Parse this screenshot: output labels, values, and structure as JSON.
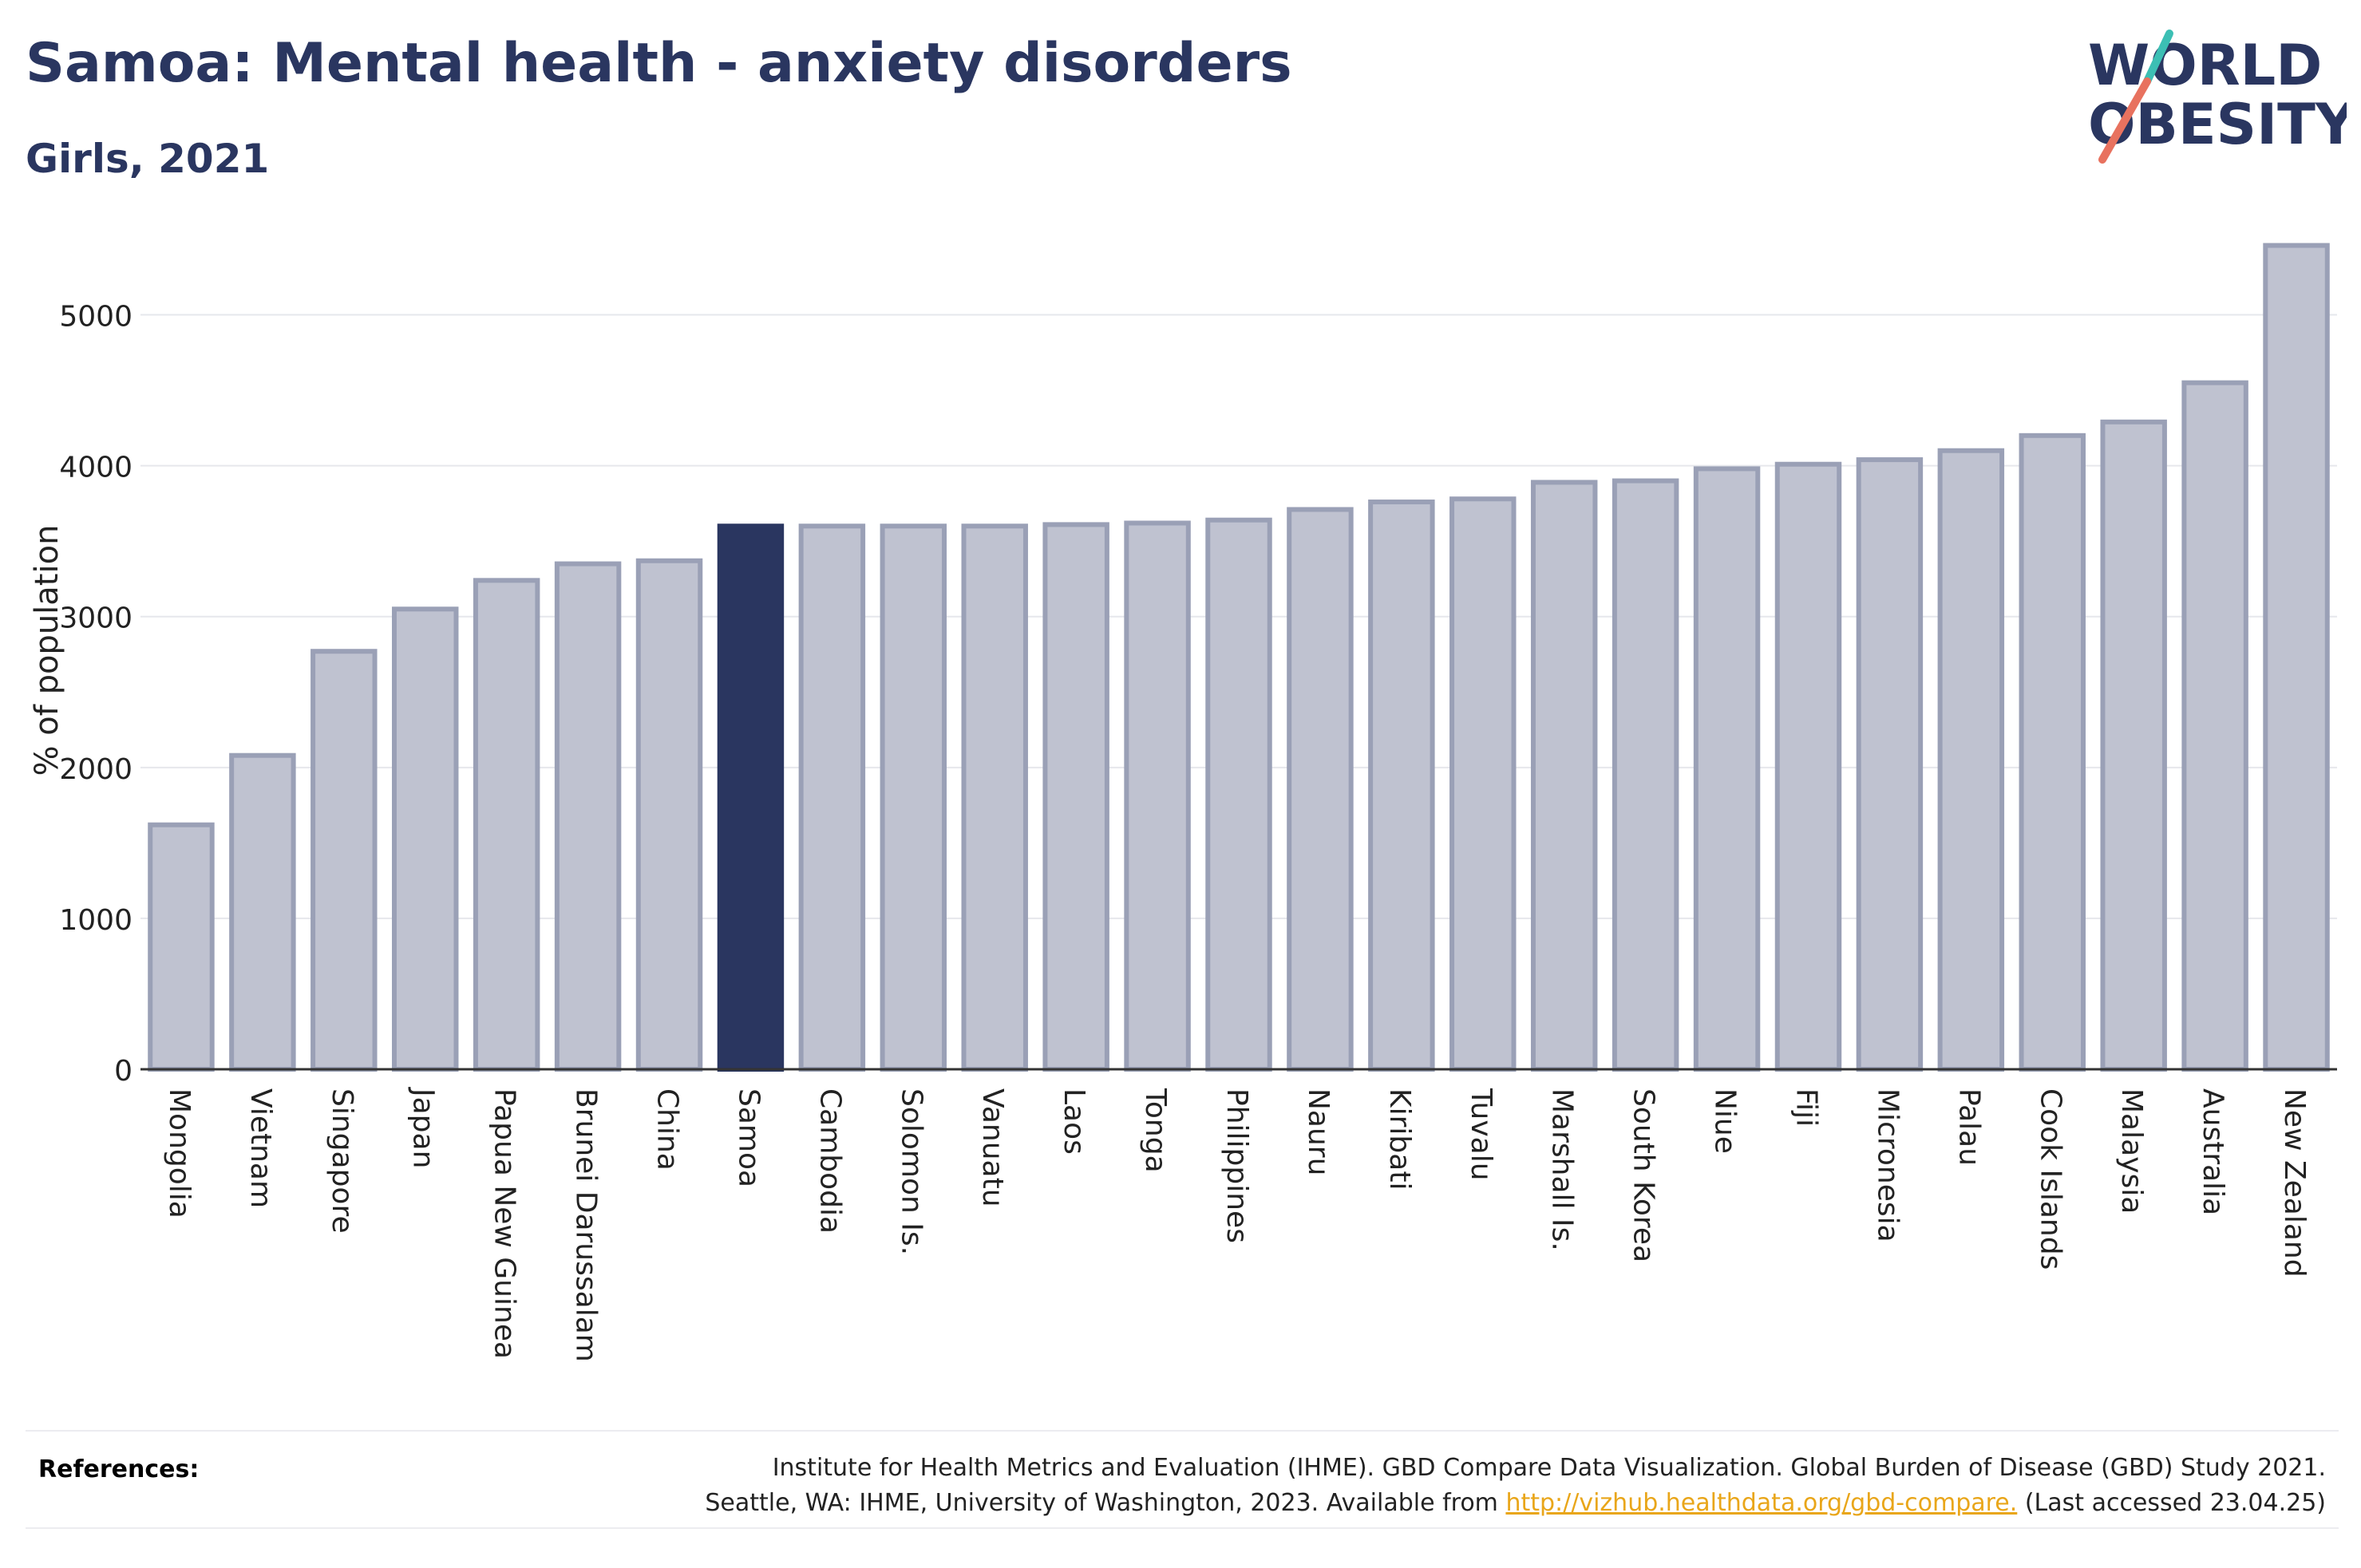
{
  "header": {
    "title": "Samoa: Mental health - anxiety disorders",
    "subtitle": "Girls, 2021"
  },
  "logo": {
    "line1": "WORLD",
    "line2": "OBESITY",
    "accent_colors": [
      "#e8725f",
      "#3cbfb4"
    ]
  },
  "chart_data": {
    "type": "bar",
    "title": "Samoa: Mental health - anxiety disorders",
    "subtitle": "Girls, 2021",
    "xlabel": "",
    "ylabel": "% of population",
    "ylim": [
      0,
      5500
    ],
    "yticks": [
      0,
      1000,
      2000,
      3000,
      4000,
      5000
    ],
    "grid": true,
    "highlight": "Samoa",
    "colors": {
      "bar": "#bfc2d0",
      "bar_edge": "#9aa0b6",
      "highlight": "#2a3660"
    },
    "categories": [
      "Mongolia",
      "Vietnam",
      "Singapore",
      "Japan",
      "Papua New Guinea",
      "Brunei Darussalam",
      "China",
      "Samoa",
      "Cambodia",
      "Solomon Is.",
      "Vanuatu",
      "Laos",
      "Tonga",
      "Philippines",
      "Nauru",
      "Kiribati",
      "Tuvalu",
      "Marshall Is.",
      "South Korea",
      "Niue",
      "Fiji",
      "Micronesia",
      "Palau",
      "Cook Islands",
      "Malaysia",
      "Australia",
      "New Zealand"
    ],
    "values": [
      1620,
      2080,
      2770,
      3050,
      3240,
      3350,
      3370,
      3600,
      3600,
      3600,
      3600,
      3610,
      3620,
      3640,
      3710,
      3760,
      3780,
      3890,
      3900,
      3980,
      4010,
      4040,
      4100,
      4200,
      4290,
      4550,
      5460
    ]
  },
  "references": {
    "label": "References:",
    "line1": "Institute for Health Metrics and Evaluation (IHME). GBD Compare Data Visualization. Global Burden of Disease (GBD) Study 2021.",
    "line2_prefix": "Seattle, WA: IHME, University of Washington, 2023. Available from ",
    "link": "http://vizhub.healthdata.org/gbd-compare.",
    "line2_suffix": " (Last accessed 23.04.25)"
  }
}
